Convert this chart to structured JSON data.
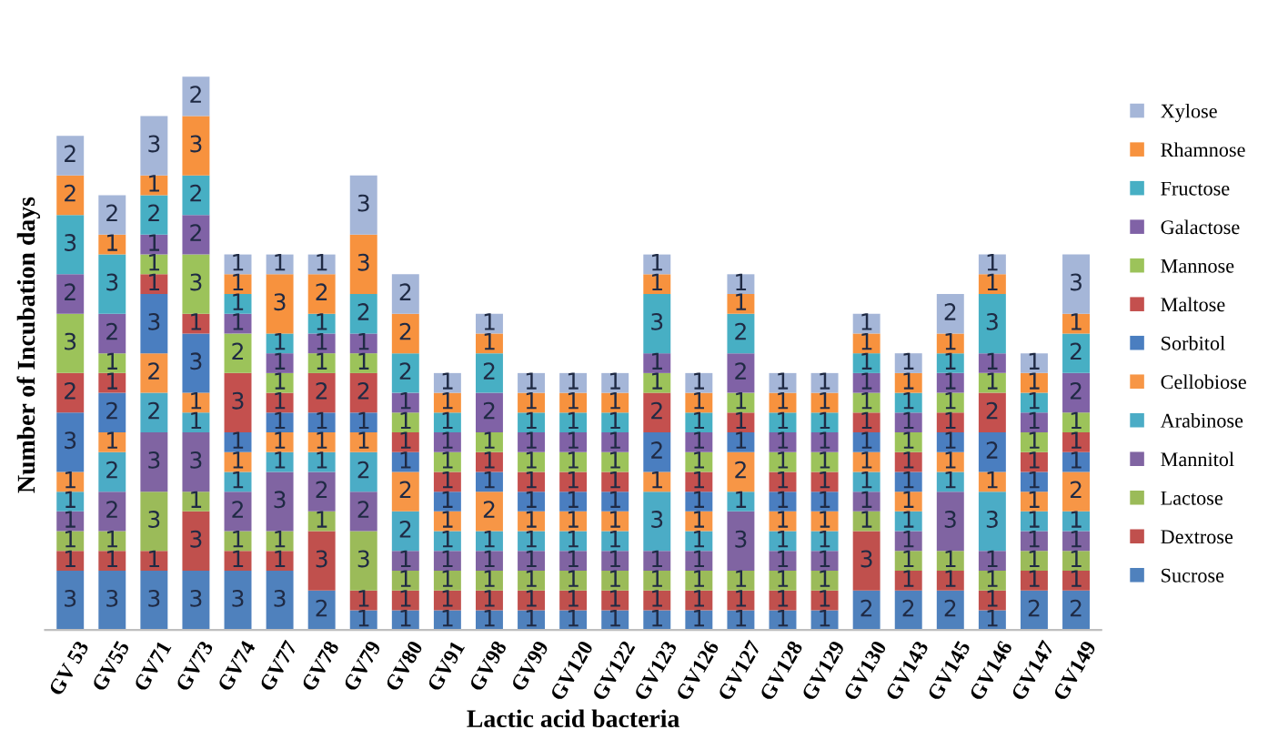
{
  "chart_data": {
    "type": "bar",
    "stacked": true,
    "data_labels": true,
    "legend": "right",
    "xlabel": "Lactic acid bacteria",
    "ylabel": "Number of Incubation days",
    "categories": [
      "GV 53",
      "GV55",
      "GV71",
      "GV73",
      "GV74",
      "GV77",
      "GV78",
      "GV79",
      "GV80",
      "GV91",
      "GV98",
      "GV99",
      "GV120",
      "GV122",
      "GV123",
      "GV126",
      "GV127",
      "GV128",
      "GV129",
      "GV130",
      "GV143",
      "GV145",
      "GV146",
      "GV147",
      "GV149"
    ],
    "series": [
      {
        "name": "Sucrose",
        "color": "#4f81bd",
        "values": [
          3,
          3,
          3,
          3,
          3,
          3,
          2,
          1,
          1,
          1,
          1,
          1,
          1,
          1,
          1,
          1,
          1,
          1,
          1,
          2,
          2,
          2,
          1,
          2,
          2
        ]
      },
      {
        "name": "Dextrose",
        "color": "#c0504d",
        "values": [
          1,
          1,
          1,
          3,
          1,
          1,
          3,
          1,
          1,
          1,
          1,
          1,
          1,
          1,
          1,
          1,
          1,
          1,
          1,
          3,
          1,
          1,
          1,
          1,
          1
        ]
      },
      {
        "name": "Lactose",
        "color": "#9bbb59",
        "values": [
          1,
          1,
          3,
          1,
          1,
          1,
          1,
          3,
          1,
          1,
          1,
          1,
          1,
          1,
          1,
          1,
          1,
          1,
          1,
          1,
          1,
          1,
          1,
          1,
          1
        ]
      },
      {
        "name": "Mannitol",
        "color": "#8064a2",
        "values": [
          1,
          2,
          3,
          3,
          2,
          3,
          2,
          2,
          1,
          1,
          1,
          1,
          1,
          1,
          1,
          1,
          3,
          1,
          1,
          1,
          1,
          3,
          1,
          1,
          1
        ]
      },
      {
        "name": "Arabinose",
        "color": "#4bacc6",
        "values": [
          1,
          2,
          2,
          1,
          1,
          1,
          1,
          2,
          2,
          1,
          1,
          1,
          1,
          1,
          3,
          1,
          1,
          1,
          1,
          1,
          1,
          1,
          3,
          1,
          1
        ]
      },
      {
        "name": "Cellobiose",
        "color": "#f79646",
        "values": [
          1,
          1,
          2,
          1,
          1,
          1,
          1,
          1,
          2,
          1,
          2,
          1,
          1,
          1,
          1,
          1,
          2,
          1,
          1,
          1,
          1,
          1,
          1,
          1,
          2
        ]
      },
      {
        "name": "Sorbitol",
        "color": "#4a7ec0",
        "values": [
          3,
          2,
          3,
          3,
          1,
          1,
          1,
          1,
          1,
          1,
          1,
          1,
          1,
          1,
          2,
          1,
          1,
          1,
          1,
          1,
          1,
          1,
          2,
          1,
          1
        ]
      },
      {
        "name": "Maltose",
        "color": "#c4504e",
        "values": [
          2,
          1,
          1,
          1,
          3,
          1,
          2,
          2,
          1,
          1,
          1,
          1,
          1,
          1,
          2,
          1,
          1,
          1,
          1,
          1,
          1,
          1,
          2,
          1,
          1
        ]
      },
      {
        "name": "Mannose",
        "color": "#9cc35a",
        "values": [
          3,
          1,
          1,
          3,
          2,
          1,
          1,
          1,
          1,
          1,
          1,
          1,
          1,
          1,
          1,
          1,
          1,
          1,
          1,
          1,
          1,
          1,
          1,
          1,
          1
        ]
      },
      {
        "name": "Galactose",
        "color": "#8062a6",
        "values": [
          2,
          2,
          1,
          2,
          1,
          1,
          1,
          1,
          1,
          1,
          2,
          1,
          1,
          1,
          1,
          1,
          2,
          1,
          1,
          1,
          1,
          1,
          1,
          1,
          2
        ]
      },
      {
        "name": "Fructose",
        "color": "#47afc4",
        "values": [
          3,
          3,
          2,
          2,
          1,
          1,
          1,
          2,
          2,
          1,
          2,
          1,
          1,
          1,
          3,
          1,
          2,
          1,
          1,
          1,
          1,
          1,
          3,
          1,
          2
        ]
      },
      {
        "name": "Rhamnose",
        "color": "#f7923e",
        "values": [
          2,
          1,
          1,
          3,
          1,
          3,
          2,
          3,
          2,
          1,
          1,
          1,
          1,
          1,
          1,
          1,
          1,
          1,
          1,
          1,
          1,
          1,
          1,
          1,
          1
        ]
      },
      {
        "name": "Xylose",
        "color": "#a5b6d8",
        "values": [
          2,
          2,
          3,
          2,
          1,
          1,
          1,
          3,
          2,
          1,
          1,
          1,
          1,
          1,
          1,
          1,
          1,
          1,
          1,
          1,
          1,
          2,
          1,
          1,
          3
        ]
      }
    ]
  }
}
